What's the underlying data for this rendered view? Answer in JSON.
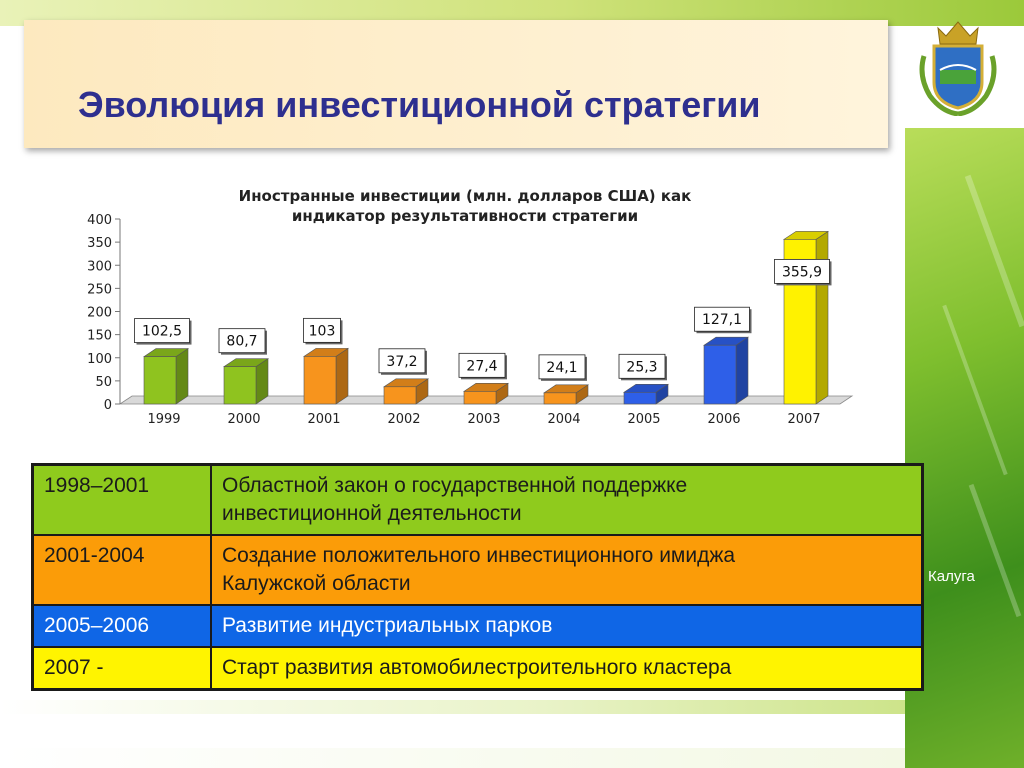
{
  "title": "Эволюция инвестиционной стратегии",
  "map_label": "Калуга",
  "chart_data": {
    "type": "bar",
    "title_lines": [
      "Иностранные инвестиции (млн. долларов США) как",
      "индикатор результативности стратегии"
    ],
    "categories": [
      "1999",
      "2000",
      "2001",
      "2002",
      "2003",
      "2004",
      "2005",
      "2006",
      "2007"
    ],
    "values": [
      102.5,
      80.7,
      103,
      37.2,
      27.4,
      24.1,
      25.3,
      127.1,
      355.9
    ],
    "value_labels": [
      "102,5",
      "80,7",
      "103",
      "37,2",
      "27,4",
      "24,1",
      "25,3",
      "127,1",
      "355,9"
    ],
    "colors": [
      "#8fc31f",
      "#8fc31f",
      "#f7941d",
      "#f7941d",
      "#f7941d",
      "#f7941d",
      "#2e5fe8",
      "#2e5fe8",
      "#fff200"
    ],
    "ylim": [
      0,
      400
    ],
    "yticks": [
      0,
      50,
      100,
      150,
      200,
      250,
      300,
      350,
      400
    ],
    "xlabel": "",
    "ylabel": "",
    "grid": false,
    "legend": "none"
  },
  "timeline": [
    {
      "period": "1998–2001",
      "text": "Областной закон о государственной поддержке\n      инвестиционной деятельности"
    },
    {
      "period": "2001-2004",
      "text": "Создание положительного инвестиционного имиджа\n      Калужской области"
    },
    {
      "period": "2005–2006",
      "text": "Развитие индустриальных парков"
    },
    {
      "period": "2007 -",
      "text": "Старт развития автомобилестроительного кластера"
    }
  ],
  "colors": {
    "title": "#2e2f8f",
    "row1": "#8fcb1d",
    "row2": "#fb9c08",
    "row3": "#0f66e6",
    "row4": "#fff400"
  },
  "icons": {
    "emblem": "coat-of-arms-icon"
  }
}
